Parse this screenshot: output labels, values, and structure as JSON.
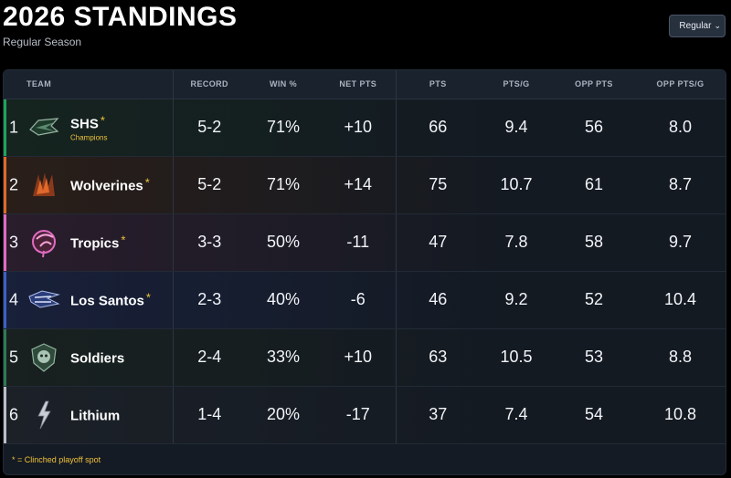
{
  "header": {
    "title": "2026 STANDINGS",
    "subtitle": "Regular Season"
  },
  "season_select": {
    "value": "Regular",
    "chevron": "⌄"
  },
  "columns": [
    "TEAM",
    "RECORD",
    "WIN %",
    "NET PTS",
    "PTS",
    "PTS/G",
    "OPP PTS",
    "OPP PTS/G"
  ],
  "clinched_marker": "*",
  "rows": [
    {
      "rank": "1",
      "name": "SHS",
      "clinched": true,
      "note": "Champions",
      "record": "5-2",
      "win_pct": "71%",
      "net_pts": "+10",
      "pts": "66",
      "pts_g": "9.4",
      "opp_pts": "56",
      "opp_pts_g": "8.0",
      "accent": "#1fa35a",
      "logo_icon": "shs-logo-icon",
      "row_tint": "#15241f"
    },
    {
      "rank": "2",
      "name": "Wolverines",
      "clinched": true,
      "note": "",
      "record": "5-2",
      "win_pct": "71%",
      "net_pts": "+14",
      "pts": "75",
      "pts_g": "10.7",
      "opp_pts": "61",
      "opp_pts_g": "8.7",
      "accent": "#e0682a",
      "logo_icon": "wolverines-logo-icon",
      "row_tint": "#2a1e19"
    },
    {
      "rank": "3",
      "name": "Tropics",
      "clinched": true,
      "note": "",
      "record": "3-3",
      "win_pct": "50%",
      "net_pts": "-11",
      "pts": "47",
      "pts_g": "7.8",
      "opp_pts": "58",
      "opp_pts_g": "9.7",
      "accent": "#e06bc0",
      "logo_icon": "tropics-logo-icon",
      "row_tint": "#2a1d2c"
    },
    {
      "rank": "4",
      "name": "Los Santos",
      "clinched": true,
      "note": "",
      "record": "2-3",
      "win_pct": "40%",
      "net_pts": "-6",
      "pts": "46",
      "pts_g": "9.2",
      "opp_pts": "52",
      "opp_pts_g": "10.4",
      "accent": "#3b5fc4",
      "logo_icon": "los-santos-logo-icon",
      "row_tint": "#18203a"
    },
    {
      "rank": "5",
      "name": "Soldiers",
      "clinched": false,
      "note": "",
      "record": "2-4",
      "win_pct": "33%",
      "net_pts": "+10",
      "pts": "63",
      "pts_g": "10.5",
      "opp_pts": "53",
      "opp_pts_g": "8.8",
      "accent": "#2e7a52",
      "logo_icon": "soldiers-logo-icon",
      "row_tint": "#18211f"
    },
    {
      "rank": "6",
      "name": "Lithium",
      "clinched": false,
      "note": "",
      "record": "1-4",
      "win_pct": "20%",
      "net_pts": "-17",
      "pts": "37",
      "pts_g": "7.4",
      "opp_pts": "54",
      "opp_pts_g": "10.8",
      "accent": "#b9bec6",
      "logo_icon": "lithium-logo-icon",
      "row_tint": "#1c2128"
    }
  ],
  "footer": {
    "note": "* = Clinched playoff spot"
  }
}
